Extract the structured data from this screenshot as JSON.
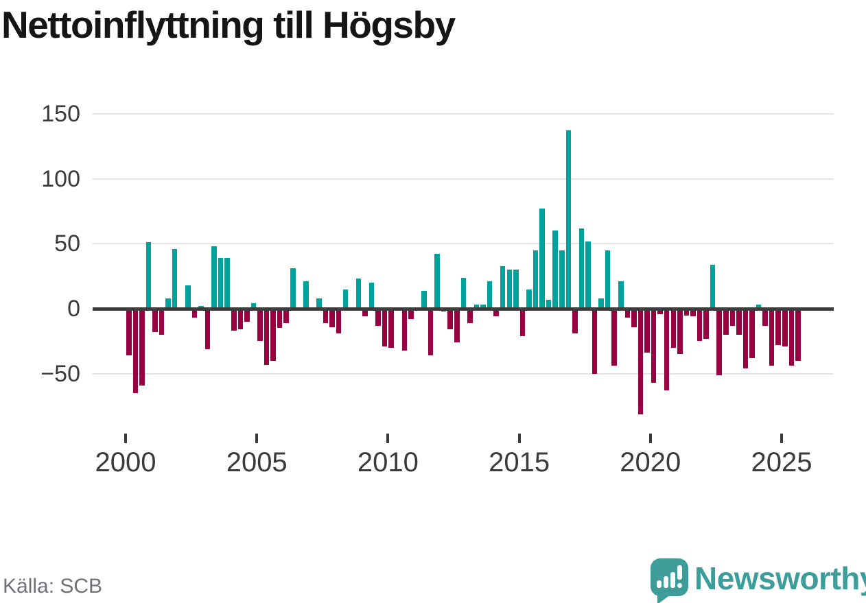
{
  "title": "Nettoinflyttning till Högsby",
  "source": "Källa: SCB",
  "branding": {
    "logo_text": "Newsworthy",
    "logo_icon": "newsworthy-bar-chart-speech-bubble-icon",
    "logo_color": "#3f9d99"
  },
  "colors": {
    "positive_bar": "#00a39b",
    "negative_bar": "#990041",
    "gridline": "#e4e4e4",
    "zero_line": "#3d3d3d",
    "axis_text": "#3a3a3a",
    "source_text": "#70707a"
  },
  "chart_data": {
    "type": "bar",
    "title": "Nettoinflyttning till Högsby",
    "xlabel": "",
    "ylabel": "",
    "frequency": "quarterly",
    "start_year": 2000,
    "start_quarter": 1,
    "end_label": "2025Q3",
    "grid": "horizontal",
    "legend": "none",
    "ylim": [
      -95,
      160
    ],
    "y_ticks": [
      150,
      100,
      50,
      0,
      -50
    ],
    "y_tick_labels": [
      "150",
      "100",
      "50",
      "0",
      "−50"
    ],
    "x_tick_years": [
      2000,
      2005,
      2010,
      2015,
      2020,
      2025
    ],
    "x_tick_labels": [
      "2000",
      "2005",
      "2010",
      "2015",
      "2020",
      "2025"
    ],
    "values": [
      -36,
      -65,
      -59,
      51,
      -18,
      -20,
      8,
      46,
      1,
      18,
      -7,
      2,
      -31,
      48,
      39,
      39,
      -17,
      -16,
      -10,
      4,
      -25,
      -43,
      -40,
      -15,
      -11,
      31,
      0,
      21,
      0,
      8,
      -11,
      -14,
      -19,
      15,
      1,
      23,
      -6,
      20,
      -13,
      -29,
      -30,
      0,
      -32,
      -8,
      0,
      14,
      -36,
      42,
      -2,
      -16,
      -26,
      24,
      -11,
      3,
      3,
      21,
      -6,
      33,
      30,
      30,
      -21,
      15,
      45,
      77,
      7,
      60,
      45,
      137,
      -19,
      62,
      52,
      -50,
      8,
      45,
      -44,
      21,
      -7,
      -14,
      -81,
      -34,
      -57,
      -4,
      -63,
      -30,
      -35,
      -5,
      -6,
      -25,
      -23,
      34,
      -51,
      -20,
      -13,
      -20,
      -46,
      -38,
      3,
      -13,
      -44,
      -28,
      -29,
      -44,
      -40
    ]
  }
}
